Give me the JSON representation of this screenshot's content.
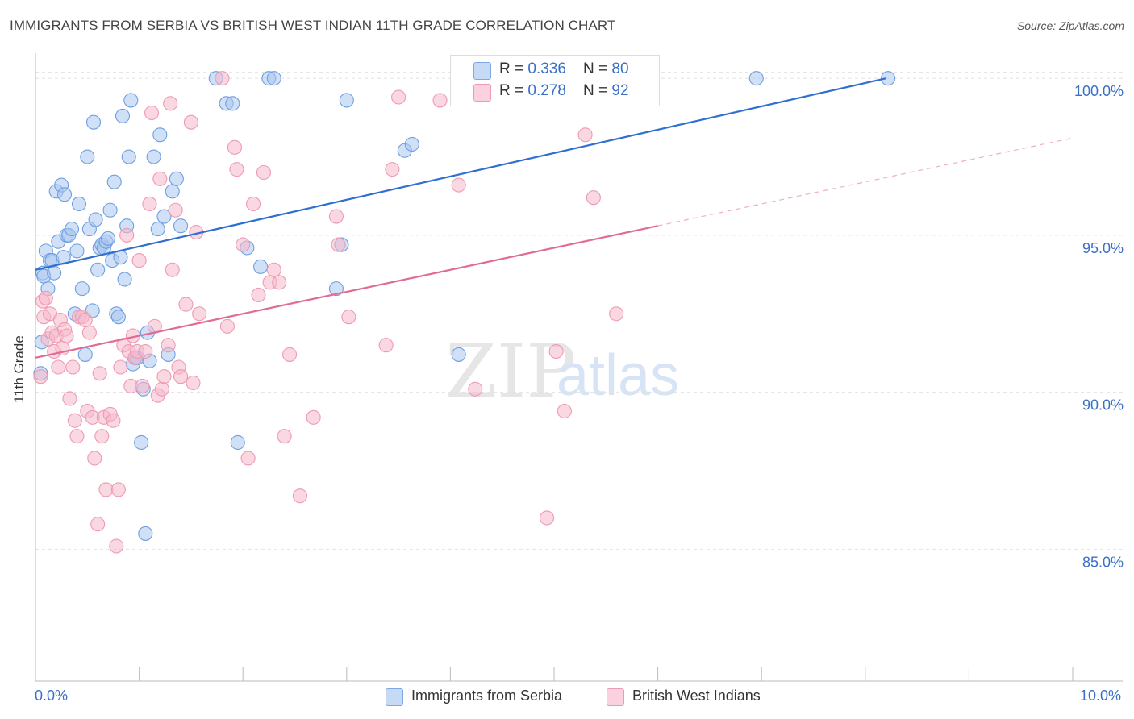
{
  "title": "IMMIGRANTS FROM SERBIA VS BRITISH WEST INDIAN 11TH GRADE CORRELATION CHART",
  "source": "Source: ZipAtlas.com",
  "watermark": {
    "zip": "ZIP",
    "atlas": "atlas"
  },
  "legend": {
    "rows": [
      {
        "r_label": "R = ",
        "r_value": "0.336",
        "n_label": "N = ",
        "n_value": "80",
        "color": "#a9c6ee"
      },
      {
        "r_label": "R = ",
        "r_value": "0.278",
        "n_label": "N = ",
        "n_value": "92",
        "color": "#f5b8cb"
      }
    ]
  },
  "chart_data": {
    "type": "scatter",
    "title": "IMMIGRANTS FROM SERBIA VS BRITISH WEST INDIAN 11TH GRADE CORRELATION CHART",
    "xlabel": "",
    "ylabel": "11th Grade",
    "xlim": [
      0,
      10
    ],
    "ylim": [
      80.8,
      100.8
    ],
    "x_tick_labels": [
      "0.0%",
      "10.0%"
    ],
    "y_tick_labels": [
      {
        "value": 100,
        "label": "100.0%"
      },
      {
        "value": 95,
        "label": "95.0%"
      },
      {
        "value": 90,
        "label": "90.0%"
      },
      {
        "value": 85,
        "label": "85.0%"
      }
    ],
    "grid": true,
    "legend_position": "top-center",
    "series": [
      {
        "name": "Immigrants from Serbia",
        "color": "#6f9fe0",
        "fill": "#a9c6ee",
        "trend": {
          "x": [
            0.0,
            8.2
          ],
          "y": [
            93.9,
            100.0
          ],
          "style": "solid",
          "color": "#2f6fd0"
        },
        "points": [
          [
            0.05,
            90.6
          ],
          [
            0.06,
            91.6
          ],
          [
            0.07,
            93.8
          ],
          [
            0.08,
            93.7
          ],
          [
            0.1,
            94.5
          ],
          [
            0.12,
            93.3
          ],
          [
            0.14,
            94.2
          ],
          [
            0.16,
            94.2
          ],
          [
            0.18,
            93.8
          ],
          [
            0.2,
            96.4
          ],
          [
            0.22,
            94.8
          ],
          [
            0.25,
            96.6
          ],
          [
            0.27,
            94.3
          ],
          [
            0.28,
            96.3
          ],
          [
            0.3,
            95.0
          ],
          [
            0.32,
            95.0
          ],
          [
            0.35,
            95.2
          ],
          [
            0.38,
            92.5
          ],
          [
            0.4,
            94.5
          ],
          [
            0.42,
            96.0
          ],
          [
            0.45,
            93.3
          ],
          [
            0.48,
            91.2
          ],
          [
            0.5,
            97.5
          ],
          [
            0.52,
            95.2
          ],
          [
            0.55,
            92.6
          ],
          [
            0.56,
            98.6
          ],
          [
            0.58,
            95.5
          ],
          [
            0.6,
            93.9
          ],
          [
            0.62,
            94.6
          ],
          [
            0.64,
            94.7
          ],
          [
            0.66,
            94.6
          ],
          [
            0.68,
            94.8
          ],
          [
            0.7,
            94.9
          ],
          [
            0.72,
            95.8
          ],
          [
            0.74,
            94.2
          ],
          [
            0.76,
            96.7
          ],
          [
            0.78,
            92.5
          ],
          [
            0.8,
            92.4
          ],
          [
            0.82,
            94.3
          ],
          [
            0.84,
            98.8
          ],
          [
            0.86,
            93.6
          ],
          [
            0.88,
            95.3
          ],
          [
            0.9,
            97.5
          ],
          [
            0.92,
            99.3
          ],
          [
            0.94,
            90.9
          ],
          [
            0.96,
            91.1
          ],
          [
            0.98,
            91.1
          ],
          [
            1.02,
            88.4
          ],
          [
            1.04,
            90.1
          ],
          [
            1.06,
            85.5
          ],
          [
            1.08,
            91.9
          ],
          [
            1.1,
            91.0
          ],
          [
            1.14,
            97.5
          ],
          [
            1.18,
            95.2
          ],
          [
            1.2,
            98.2
          ],
          [
            1.24,
            95.6
          ],
          [
            1.28,
            91.2
          ],
          [
            1.32,
            96.4
          ],
          [
            1.36,
            96.8
          ],
          [
            1.4,
            95.3
          ],
          [
            1.74,
            100.0
          ],
          [
            1.84,
            99.2
          ],
          [
            1.9,
            99.2
          ],
          [
            1.95,
            88.4
          ],
          [
            2.04,
            94.6
          ],
          [
            2.17,
            94.0
          ],
          [
            2.25,
            100.0
          ],
          [
            2.3,
            100.0
          ],
          [
            2.9,
            93.3
          ],
          [
            2.95,
            94.7
          ],
          [
            3.0,
            99.3
          ],
          [
            3.56,
            97.7
          ],
          [
            3.63,
            97.9
          ],
          [
            4.08,
            91.2
          ],
          [
            6.95,
            100.0
          ],
          [
            8.22,
            100.0
          ]
        ]
      },
      {
        "name": "British West Indians",
        "color": "#ee9ab5",
        "fill": "#f5b8cb",
        "trend": {
          "x": [
            0.0,
            6.0
          ],
          "y": [
            91.1,
            95.3
          ],
          "style": "solid",
          "color": "#e06b95",
          "extension": {
            "x": [
              6.0,
              10.0
            ],
            "y": [
              95.3,
              98.1
            ],
            "style": "dashed"
          }
        },
        "points": [
          [
            0.05,
            90.5
          ],
          [
            0.07,
            92.9
          ],
          [
            0.08,
            92.4
          ],
          [
            0.1,
            93.0
          ],
          [
            0.12,
            91.7
          ],
          [
            0.14,
            92.5
          ],
          [
            0.16,
            91.9
          ],
          [
            0.18,
            91.3
          ],
          [
            0.2,
            91.8
          ],
          [
            0.22,
            90.8
          ],
          [
            0.24,
            92.3
          ],
          [
            0.26,
            91.4
          ],
          [
            0.28,
            92.0
          ],
          [
            0.3,
            91.8
          ],
          [
            0.33,
            89.8
          ],
          [
            0.36,
            90.8
          ],
          [
            0.38,
            89.1
          ],
          [
            0.4,
            88.6
          ],
          [
            0.42,
            92.4
          ],
          [
            0.45,
            92.4
          ],
          [
            0.48,
            92.3
          ],
          [
            0.5,
            89.4
          ],
          [
            0.52,
            91.9
          ],
          [
            0.55,
            89.2
          ],
          [
            0.57,
            87.9
          ],
          [
            0.6,
            85.8
          ],
          [
            0.62,
            90.6
          ],
          [
            0.64,
            88.6
          ],
          [
            0.66,
            89.2
          ],
          [
            0.68,
            86.9
          ],
          [
            0.72,
            89.3
          ],
          [
            0.75,
            89.1
          ],
          [
            0.78,
            85.1
          ],
          [
            0.8,
            86.9
          ],
          [
            0.82,
            90.8
          ],
          [
            0.85,
            91.5
          ],
          [
            0.88,
            95.0
          ],
          [
            0.9,
            91.3
          ],
          [
            0.92,
            90.2
          ],
          [
            0.94,
            91.8
          ],
          [
            0.96,
            91.1
          ],
          [
            0.98,
            91.3
          ],
          [
            1.0,
            94.2
          ],
          [
            1.03,
            90.2
          ],
          [
            1.06,
            91.3
          ],
          [
            1.1,
            96.0
          ],
          [
            1.12,
            98.9
          ],
          [
            1.15,
            92.1
          ],
          [
            1.18,
            89.9
          ],
          [
            1.2,
            96.8
          ],
          [
            1.22,
            90.1
          ],
          [
            1.24,
            90.5
          ],
          [
            1.28,
            91.5
          ],
          [
            1.3,
            99.2
          ],
          [
            1.32,
            93.9
          ],
          [
            1.35,
            95.8
          ],
          [
            1.38,
            90.8
          ],
          [
            1.4,
            90.5
          ],
          [
            1.45,
            92.8
          ],
          [
            1.5,
            98.6
          ],
          [
            1.52,
            90.3
          ],
          [
            1.55,
            95.1
          ],
          [
            1.58,
            92.5
          ],
          [
            1.8,
            100.0
          ],
          [
            1.85,
            92.1
          ],
          [
            1.92,
            97.8
          ],
          [
            1.94,
            97.1
          ],
          [
            2.0,
            94.7
          ],
          [
            2.05,
            87.9
          ],
          [
            2.1,
            96.0
          ],
          [
            2.15,
            93.1
          ],
          [
            2.2,
            97.0
          ],
          [
            2.26,
            93.5
          ],
          [
            2.3,
            93.9
          ],
          [
            2.35,
            93.5
          ],
          [
            2.4,
            88.6
          ],
          [
            2.45,
            91.2
          ],
          [
            2.55,
            86.7
          ],
          [
            2.68,
            89.2
          ],
          [
            2.9,
            95.6
          ],
          [
            2.92,
            94.7
          ],
          [
            3.02,
            92.4
          ],
          [
            3.38,
            91.5
          ],
          [
            3.44,
            97.1
          ],
          [
            3.5,
            99.4
          ],
          [
            3.9,
            99.3
          ],
          [
            4.08,
            96.6
          ],
          [
            4.24,
            90.1
          ],
          [
            4.93,
            86.0
          ],
          [
            5.02,
            91.3
          ],
          [
            5.1,
            89.4
          ],
          [
            5.3,
            98.2
          ],
          [
            5.38,
            96.2
          ],
          [
            5.6,
            92.5
          ]
        ]
      }
    ]
  },
  "bottom_legend": [
    {
      "label": "Immigrants from Serbia",
      "color": "#a9c6ee"
    },
    {
      "label": "British West Indians",
      "color": "#f5b8cb"
    }
  ]
}
